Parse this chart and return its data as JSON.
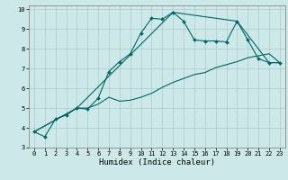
{
  "xlabel": "Humidex (Indice chaleur)",
  "bg_color": "#cce8e8",
  "grid_color": "#aacccc",
  "line_color": "#006666",
  "xlim": [
    -0.5,
    23.5
  ],
  "ylim": [
    3,
    10.2
  ],
  "xticks": [
    0,
    1,
    2,
    3,
    4,
    5,
    6,
    7,
    8,
    9,
    10,
    11,
    12,
    13,
    14,
    15,
    16,
    17,
    18,
    19,
    20,
    21,
    22,
    23
  ],
  "yticks": [
    3,
    4,
    5,
    6,
    7,
    8,
    9,
    10
  ],
  "line1_x": [
    0,
    1,
    2,
    3,
    4,
    5,
    6,
    7,
    8,
    9,
    10,
    11,
    12,
    13,
    14,
    15,
    16,
    17,
    18,
    19,
    20,
    21,
    22,
    23
  ],
  "line1_y": [
    3.8,
    3.55,
    4.45,
    4.65,
    5.0,
    4.95,
    5.5,
    6.85,
    7.35,
    7.75,
    8.8,
    9.55,
    9.5,
    9.85,
    9.4,
    8.45,
    8.4,
    8.4,
    8.35,
    9.4,
    8.45,
    7.5,
    7.3,
    7.3
  ],
  "line2_x": [
    0,
    4,
    5,
    6,
    7,
    8,
    9,
    10,
    11,
    12,
    13,
    14,
    15,
    16,
    17,
    18,
    19,
    20,
    21,
    22,
    23
  ],
  "line2_y": [
    3.8,
    5.0,
    5.0,
    5.2,
    5.55,
    5.35,
    5.4,
    5.55,
    5.75,
    6.05,
    6.3,
    6.5,
    6.7,
    6.8,
    7.05,
    7.2,
    7.35,
    7.55,
    7.65,
    7.75,
    7.3
  ],
  "line3_x": [
    0,
    4,
    13,
    19,
    22,
    23
  ],
  "line3_y": [
    3.8,
    5.0,
    9.85,
    9.4,
    7.3,
    7.3
  ],
  "tick_fontsize": 5.0,
  "xlabel_fontsize": 6.5,
  "marker_size": 2.0,
  "line_width": 0.8
}
